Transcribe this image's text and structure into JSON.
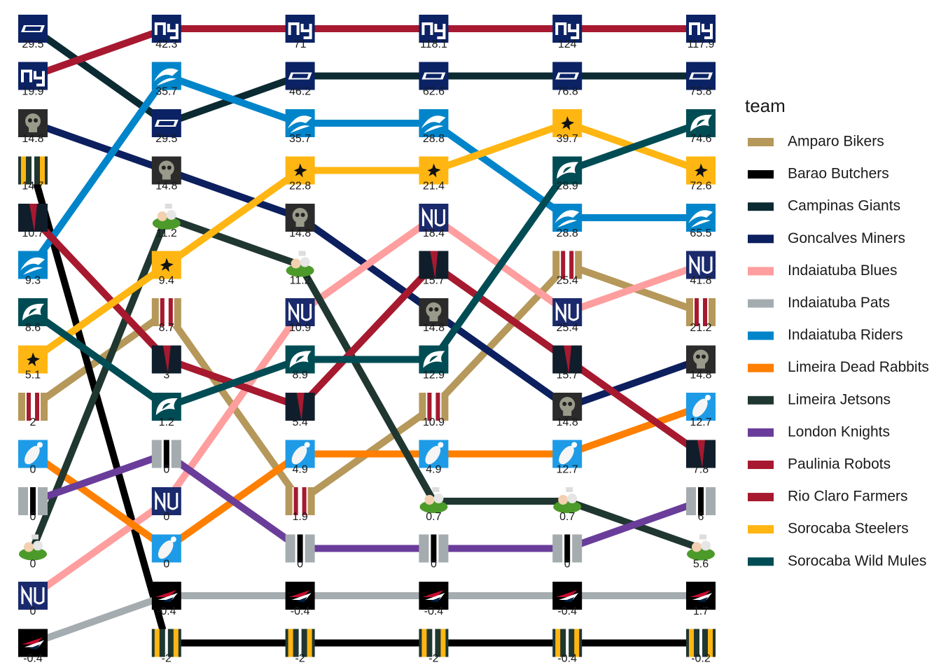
{
  "chart_data": {
    "type": "bump",
    "legend_title": "team",
    "legend": "right",
    "categories": [
      null,
      null,
      null,
      null,
      null,
      null
    ],
    "series": [
      {
        "name": "Amparo Bikers",
        "color": "#b5985a",
        "ranks": [
          9,
          7,
          11,
          9,
          6,
          7
        ],
        "values": [
          2,
          8.7,
          1.9,
          10.9,
          25.4,
          21.2
        ]
      },
      {
        "name": "Barao Butchers",
        "color": "#000000",
        "ranks": [
          4,
          14,
          14,
          14,
          14,
          14
        ],
        "values": [
          14.7,
          -2,
          -2,
          -2,
          -0.4,
          -0.2
        ]
      },
      {
        "name": "Campinas Giants",
        "color": "#0b2a32",
        "ranks": [
          1,
          3,
          2,
          2,
          2,
          2
        ],
        "values": [
          29.5,
          29.5,
          46.2,
          62.6,
          76.8,
          75.8
        ]
      },
      {
        "name": "Goncalves Miners",
        "color": "#0c1f5e",
        "ranks": [
          3,
          4,
          5,
          7,
          9,
          8
        ],
        "values": [
          14.8,
          14.8,
          14.8,
          14.8,
          14.8,
          14.8
        ]
      },
      {
        "name": "Indaiatuba Blues",
        "color": "#ff9e9e",
        "ranks": [
          13,
          11,
          7,
          5,
          7,
          6
        ],
        "values": [
          0,
          0,
          10.9,
          18.4,
          25.4,
          41.8
        ]
      },
      {
        "name": "Indaiatuba Pats",
        "color": "#a5acaf",
        "ranks": [
          14,
          13,
          13,
          13,
          13,
          13
        ],
        "values": [
          -0.4,
          -0.4,
          -0.4,
          -0.4,
          -0.4,
          1.7
        ]
      },
      {
        "name": "Indaiatuba Riders",
        "color": "#0085ca",
        "ranks": [
          6,
          2,
          3,
          3,
          5,
          5
        ],
        "values": [
          9.3,
          35.7,
          35.7,
          28.8,
          28.8,
          65.5
        ]
      },
      {
        "name": "Limeira Dead Rabbits",
        "color": "#ff7f00",
        "ranks": [
          10,
          12,
          10,
          10,
          10,
          9
        ],
        "values": [
          0,
          0,
          4.9,
          4.9,
          12.7,
          12.7
        ]
      },
      {
        "name": "Limeira Jetsons",
        "color": "#203731",
        "ranks": [
          12,
          5,
          6,
          11,
          11,
          12
        ],
        "values": [
          0,
          11.2,
          11.2,
          0.7,
          0.7,
          5.6
        ]
      },
      {
        "name": "London Knights",
        "color": "#6a3d9a",
        "ranks": [
          11,
          10,
          12,
          12,
          12,
          11
        ],
        "values": [
          0,
          0,
          0,
          0,
          0,
          6
        ]
      },
      {
        "name": "Paulinia Robots",
        "color": "#a71930",
        "ranks": [
          2,
          1,
          1,
          1,
          1,
          1
        ],
        "values": [
          19.9,
          42.3,
          71,
          118.1,
          124,
          117.9
        ]
      },
      {
        "name": "Rio Claro Farmers",
        "color": "#a6192e",
        "ranks": [
          5,
          8,
          9,
          6,
          8,
          10
        ],
        "values": [
          10.7,
          3,
          5.4,
          15.7,
          15.7,
          7.8
        ]
      },
      {
        "name": "Sorocaba Steelers",
        "color": "#ffb612",
        "ranks": [
          8,
          6,
          4,
          4,
          3,
          4
        ],
        "values": [
          5.1,
          9.4,
          22.8,
          21.4,
          39.7,
          72.6
        ]
      },
      {
        "name": "Sorocaba Wild Mules",
        "color": "#004c54",
        "ranks": [
          7,
          9,
          8,
          8,
          4,
          3
        ],
        "values": [
          8.6,
          1.2,
          8.9,
          12.9,
          28.9,
          74.6
        ]
      }
    ]
  }
}
